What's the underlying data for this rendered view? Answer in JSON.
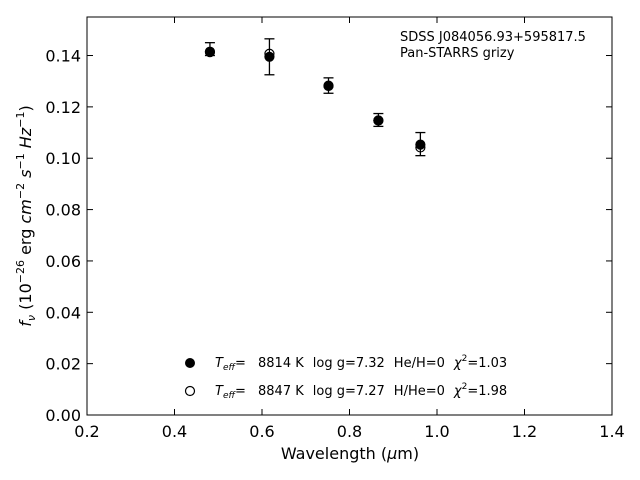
{
  "chart_data": {
    "type": "scatter",
    "annotation": [
      "SDSS J084056.93+595817.5",
      "Pan-STARRS grizy"
    ],
    "xlabel": "Wavelength (μm)",
    "ylabel": "fν (10⁻²⁶ erg cm⁻² s⁻¹ Hz⁻¹)",
    "xlim": [
      0.2,
      1.4
    ],
    "ylim": [
      0.0,
      0.155
    ],
    "x_ticks": [
      0.2,
      0.4,
      0.6,
      0.8,
      1.0,
      1.2,
      1.4
    ],
    "x_tick_labels": [
      "0.2",
      "0.4",
      "0.6",
      "0.8",
      "1.0",
      "1.2",
      "1.4"
    ],
    "y_ticks": [
      0.0,
      0.02,
      0.04,
      0.06,
      0.08,
      0.1,
      0.12,
      0.14
    ],
    "y_tick_labels": [
      "0.00",
      "0.02",
      "0.04",
      "0.06",
      "0.08",
      "0.10",
      "0.12",
      "0.14"
    ],
    "grid": false,
    "legend_position": "lower-center",
    "observed": {
      "x": [
        0.481,
        0.617,
        0.752,
        0.866,
        0.962
      ],
      "y": [
        0.1425,
        0.1395,
        0.1283,
        0.1149,
        0.1055
      ],
      "yerr": [
        0.0025,
        0.007,
        0.003,
        0.0025,
        0.0045
      ]
    },
    "series": [
      {
        "marker": "filled",
        "legend_text": "T_eff= 8814 K  log g=7.32  He/H=0  χ²=1.03",
        "x": [
          0.481,
          0.617,
          0.752,
          0.866,
          0.962
        ],
        "y": [
          0.1415,
          0.1395,
          0.1283,
          0.1147,
          0.1053
        ]
      },
      {
        "marker": "open",
        "legend_text": "T_eff= 8847 K  log g=7.27  H/He=0  χ²=1.98",
        "x": [
          0.481,
          0.617,
          0.752,
          0.866,
          0.962
        ],
        "y": [
          0.1413,
          0.1407,
          0.1281,
          0.1147,
          0.1042
        ]
      }
    ],
    "legend": [
      {
        "teff_label": "T",
        "teff_sub": "eff",
        "eq": "=",
        "temp": "8814 K",
        "logg": "log g=7.32",
        "comp": "He/H=0",
        "chi_label": "χ",
        "chi_sup": "2",
        "chi_val": "=1.03"
      },
      {
        "teff_label": "T",
        "teff_sub": "eff",
        "eq": "=",
        "temp": "8847 K",
        "logg": "log g=7.27",
        "comp": "H/He=0",
        "chi_label": "χ",
        "chi_sup": "2",
        "chi_val": "=1.98"
      }
    ],
    "axis_label_parts": {
      "x": {
        "pre": "Wavelength (",
        "mu": "μ",
        "post": "m)"
      },
      "y": {
        "f": "f",
        "nu": "ν",
        "open": " (10",
        "exp26": "−26",
        "erg": " erg ",
        "cm": "cm",
        "exp2": "−2",
        "s": " s",
        "exp1a": "−1",
        "hz": " Hz",
        "exp1b": "−1",
        "close": ")"
      }
    }
  }
}
